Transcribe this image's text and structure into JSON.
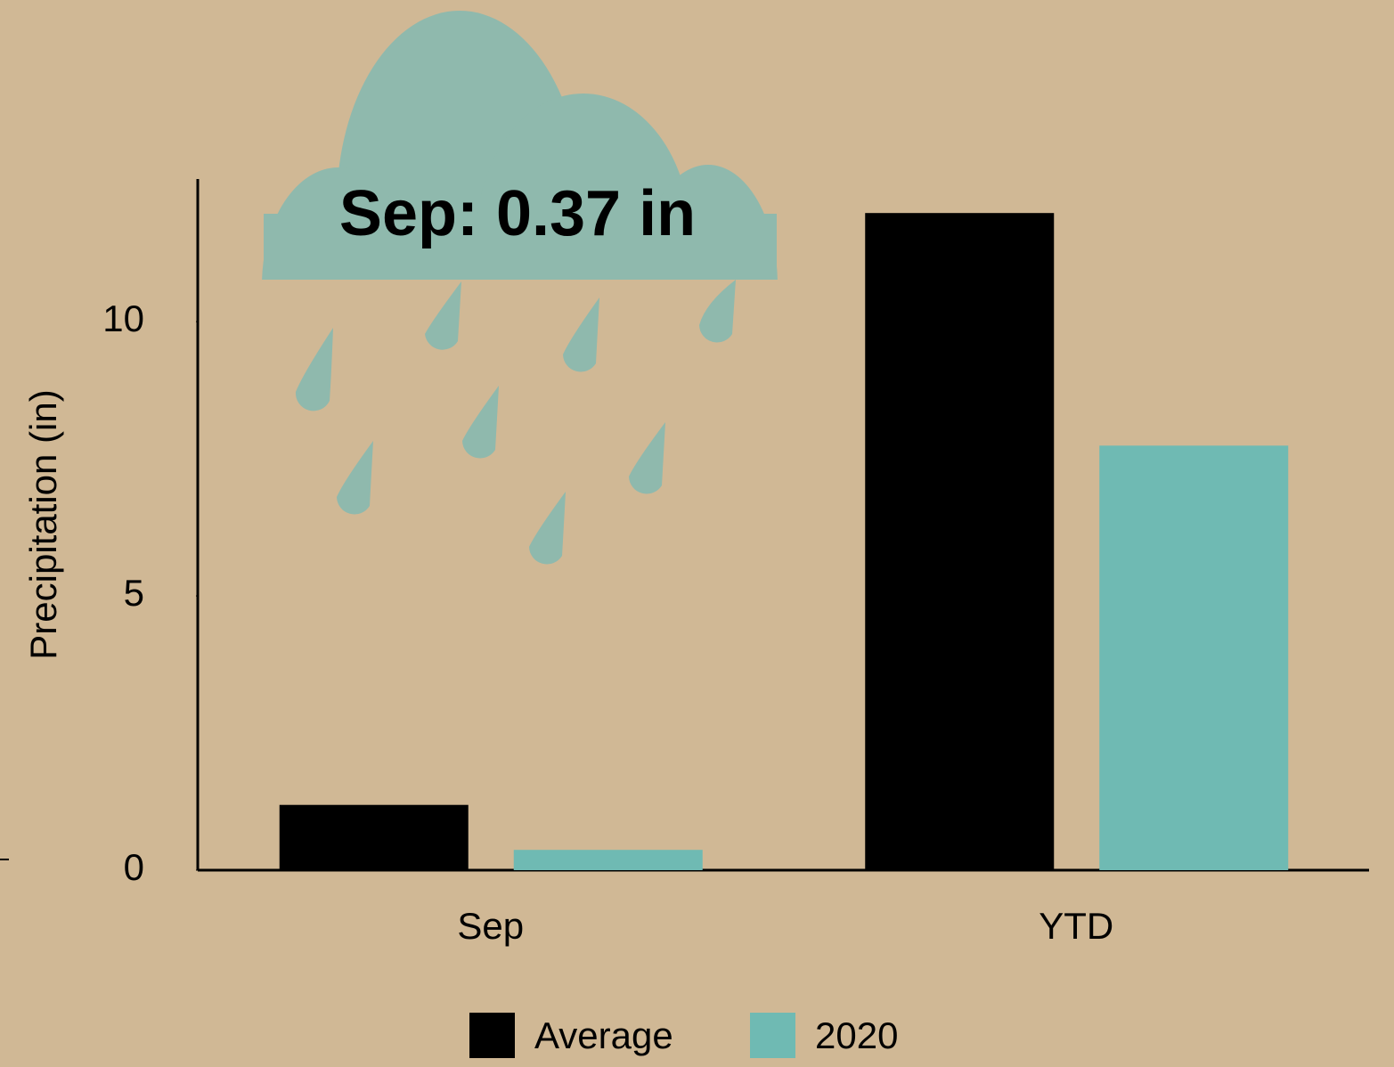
{
  "chart_data": {
    "type": "bar",
    "annotation": "Sep: 0.37 in",
    "y_label": "Precipitation (in)",
    "categories": [
      "Sep",
      "YTD"
    ],
    "series": [
      {
        "name": "Average",
        "color": "#000000",
        "values": [
          1.19,
          11.98
        ]
      },
      {
        "name": "2020",
        "color": "#6fbab3",
        "values": [
          0.37,
          7.74
        ]
      }
    ],
    "ylim": [
      0,
      12.6
    ],
    "yticks": [
      0,
      5,
      10
    ],
    "grid": false
  }
}
